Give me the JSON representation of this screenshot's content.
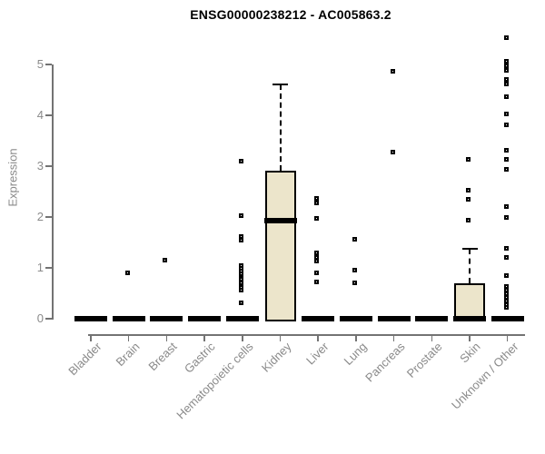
{
  "chart_data": {
    "type": "boxplot",
    "title": "ENSG00000238212 - AC005863.2",
    "ylabel": "Expression",
    "xlabel": "",
    "ylim": [
      0,
      5.6
    ],
    "yticks": [
      0,
      1,
      2,
      3,
      4,
      5
    ],
    "grid": false,
    "legend": null,
    "categories": [
      "Bladder",
      "Brain",
      "Breast",
      "Gastric",
      "Hematopoietic cells",
      "Kidney",
      "Liver",
      "Lung",
      "Pancreas",
      "Prostate",
      "Skin",
      "Unknown / Other"
    ],
    "boxes": [
      {
        "category": "Bladder",
        "q1": 0,
        "median": 0,
        "q3": 0,
        "whisker_high": 0,
        "outliers": []
      },
      {
        "category": "Brain",
        "q1": 0,
        "median": 0,
        "q3": 0,
        "whisker_high": 0,
        "outliers": [
          0.9
        ]
      },
      {
        "category": "Breast",
        "q1": 0,
        "median": 0,
        "q3": 0,
        "whisker_high": 0,
        "outliers": [
          1.15
        ]
      },
      {
        "category": "Gastric",
        "q1": 0,
        "median": 0,
        "q3": 0,
        "whisker_high": 0,
        "outliers": []
      },
      {
        "category": "Hematopoietic cells",
        "q1": 0,
        "median": 0,
        "q3": 0,
        "whisker_high": 0,
        "outliers": [
          3.1,
          2.03,
          1.62,
          1.54,
          1.04,
          0.99,
          0.93,
          0.88,
          0.82,
          0.77,
          0.71,
          0.66,
          0.61,
          0.56,
          0.32
        ]
      },
      {
        "category": "Kidney",
        "q1": 0,
        "median": 1.93,
        "q3": 2.91,
        "whisker_high": 4.61,
        "outliers": []
      },
      {
        "category": "Liver",
        "q1": 0,
        "median": 0,
        "q3": 0,
        "whisker_high": 0,
        "outliers": [
          2.36,
          2.27,
          1.98,
          1.3,
          1.21,
          1.13,
          0.91,
          0.73
        ]
      },
      {
        "category": "Lung",
        "q1": 0,
        "median": 0,
        "q3": 0,
        "whisker_high": 0,
        "outliers": [
          1.57,
          0.95,
          0.7
        ]
      },
      {
        "category": "Pancreas",
        "q1": 0,
        "median": 0,
        "q3": 0,
        "whisker_high": 0,
        "outliers": [
          4.86,
          3.27
        ]
      },
      {
        "category": "Prostate",
        "q1": 0,
        "median": 0,
        "q3": 0,
        "whisker_high": 0,
        "outliers": []
      },
      {
        "category": "Skin",
        "q1": 0,
        "median": 0,
        "q3": 0.7,
        "whisker_high": 1.38,
        "outliers": [
          3.13,
          2.52,
          2.35,
          1.93
        ]
      },
      {
        "category": "Unknown / Other",
        "q1": 0,
        "median": 0,
        "q3": 0,
        "whisker_high": 0,
        "outliers": [
          5.52,
          5.07,
          4.98,
          4.89,
          4.71,
          4.61,
          4.37,
          4.02,
          3.82,
          3.31,
          3.13,
          2.93,
          2.21,
          2.0,
          1.38,
          1.2,
          0.84,
          0.63,
          0.56,
          0.49,
          0.42,
          0.35,
          0.28,
          0.23
        ]
      }
    ],
    "colors": {
      "box_fill": "#ece5cb",
      "box_border": "#000000",
      "median": "#000000",
      "outlier": "#000000",
      "axis": "#737373",
      "tick_label": "#8a8a8a",
      "title": "#000000",
      "background": "#ffffff"
    }
  }
}
